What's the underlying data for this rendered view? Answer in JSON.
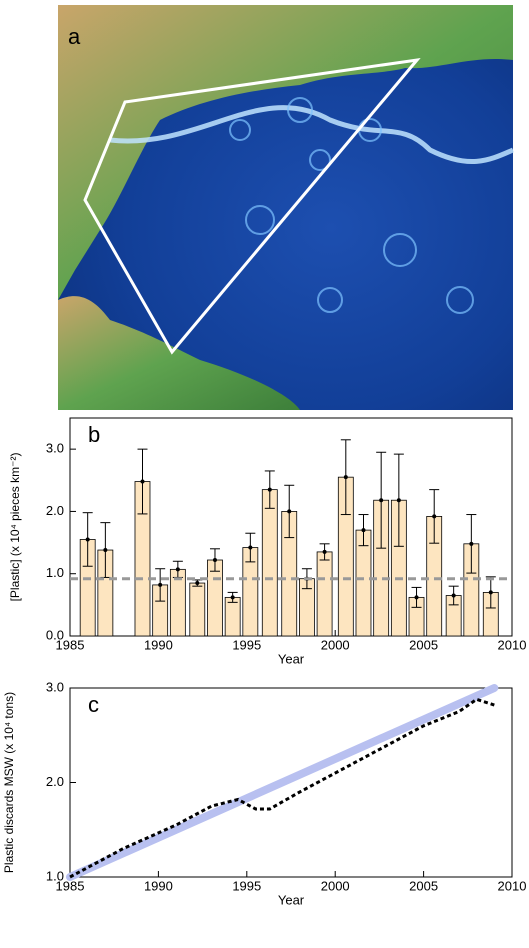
{
  "panel_a": {
    "label": "a"
  },
  "chart_data": [
    {
      "type": "bar",
      "panel": "b",
      "ylabel": "[Plastic] (x 10⁴ pieces km⁻²)",
      "xlabel": "Year",
      "x": [
        1986.0,
        1987.0,
        1989.1,
        1990.1,
        1991.1,
        1992.2,
        1993.2,
        1994.2,
        1995.2,
        1996.3,
        1997.4,
        1998.4,
        1999.4,
        2000.6,
        2001.6,
        2002.6,
        2003.6,
        2004.6,
        2005.6,
        2006.7,
        2007.7,
        2008.8
      ],
      "values": [
        1.55,
        1.38,
        2.48,
        0.82,
        1.07,
        0.85,
        1.22,
        0.62,
        1.42,
        2.35,
        2.0,
        0.92,
        1.35,
        2.55,
        1.7,
        2.18,
        2.18,
        0.62,
        1.92,
        0.65,
        1.48,
        0.7
      ],
      "errors": [
        0.43,
        0.44,
        0.52,
        0.26,
        0.13,
        0.05,
        0.18,
        0.08,
        0.23,
        0.3,
        0.42,
        0.16,
        0.13,
        0.6,
        0.25,
        0.77,
        0.74,
        0.16,
        0.43,
        0.15,
        0.47,
        0.25
      ],
      "color": "#fde5c0",
      "reference_line": 0.92,
      "reference_color": "#999999",
      "xlim": [
        1985,
        2010
      ],
      "xticks": [
        1985,
        1990,
        1995,
        2000,
        2005,
        2010
      ],
      "ylim": [
        0,
        3.5
      ],
      "yticks": [
        {
          "value": 0,
          "label": "0.0"
        },
        {
          "value": 1,
          "label": "1.0"
        },
        {
          "value": 2,
          "label": "2.0"
        },
        {
          "value": 3,
          "label": "3.0"
        }
      ]
    },
    {
      "type": "line",
      "panel": "c",
      "ylabel": "Plastic discards MSW (x 10⁴ tons)",
      "xlabel": "Year",
      "series": [
        {
          "color": "#b8c0f0",
          "style": "solid",
          "x": [
            1985,
            2009
          ],
          "values": [
            1.0,
            3.0
          ]
        },
        {
          "color": "#000000",
          "style": "dashed",
          "x": [
            1985,
            1988,
            1991,
            1993,
            1994.5,
            1995.5,
            1996.3,
            1998,
            2000,
            2003,
            2005,
            2007,
            2008,
            2009
          ],
          "values": [
            1.0,
            1.3,
            1.55,
            1.75,
            1.82,
            1.72,
            1.72,
            1.9,
            2.1,
            2.4,
            2.6,
            2.75,
            2.88,
            2.82
          ]
        }
      ],
      "xlim": [
        1985,
        2010
      ],
      "xticks": [
        1985,
        1990,
        1995,
        2000,
        2005,
        2010
      ],
      "ylim": [
        1.0,
        3.0
      ],
      "yticks": [
        {
          "value": 1,
          "label": "1.0"
        },
        {
          "value": 2,
          "label": "2.0"
        },
        {
          "value": 3,
          "label": "3.0"
        }
      ]
    }
  ]
}
